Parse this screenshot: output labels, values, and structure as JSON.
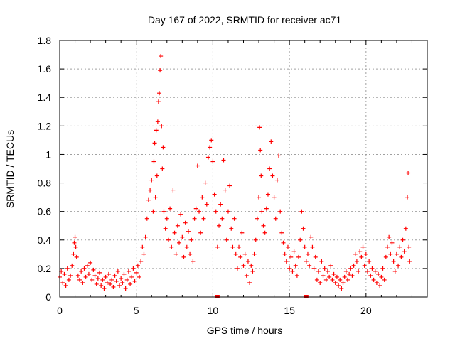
{
  "chart_data": {
    "type": "scatter",
    "title": "Day 167 of 2022, SRMTID for receiver ac71",
    "xlabel": "GPS time / hours",
    "ylabel": "SRMTID / TECUs",
    "xlim": [
      0,
      24
    ],
    "ylim": [
      0,
      1.8
    ],
    "xticks": [
      "0",
      "5",
      "10",
      "15",
      "20"
    ],
    "xtick_values": [
      0,
      5,
      10,
      15,
      20
    ],
    "yticks": [
      "0",
      "0.2",
      "0.4",
      "0.6",
      "0.8",
      "1",
      "1.2",
      "1.4",
      "1.6",
      "1.8"
    ],
    "ytick_values": [
      0,
      0.2,
      0.4,
      0.6,
      0.8,
      1.0,
      1.2,
      1.4,
      1.6,
      1.8
    ],
    "grid": true,
    "marker": "+",
    "color": "#ff0000",
    "series": [
      {
        "name": "SRMTID",
        "points": [
          [
            0.0,
            0.14
          ],
          [
            0.1,
            0.18
          ],
          [
            0.2,
            0.1
          ],
          [
            0.3,
            0.16
          ],
          [
            0.4,
            0.08
          ],
          [
            0.5,
            0.2
          ],
          [
            0.6,
            0.12
          ],
          [
            0.7,
            0.15
          ],
          [
            0.8,
            0.22
          ],
          [
            0.9,
            0.3
          ],
          [
            0.95,
            0.38
          ],
          [
            1.0,
            0.42
          ],
          [
            1.05,
            0.35
          ],
          [
            1.1,
            0.28
          ],
          [
            1.2,
            0.15
          ],
          [
            1.3,
            0.12
          ],
          [
            1.4,
            0.18
          ],
          [
            1.5,
            0.1
          ],
          [
            1.6,
            0.2
          ],
          [
            1.7,
            0.14
          ],
          [
            1.8,
            0.22
          ],
          [
            1.9,
            0.16
          ],
          [
            2.0,
            0.24
          ],
          [
            2.1,
            0.12
          ],
          [
            2.2,
            0.19
          ],
          [
            2.3,
            0.15
          ],
          [
            2.4,
            0.09
          ],
          [
            2.5,
            0.13
          ],
          [
            2.6,
            0.17
          ],
          [
            2.7,
            0.08
          ],
          [
            2.8,
            0.12
          ],
          [
            2.9,
            0.06
          ],
          [
            3.0,
            0.14
          ],
          [
            3.1,
            0.1
          ],
          [
            3.2,
            0.16
          ],
          [
            3.3,
            0.09
          ],
          [
            3.4,
            0.12
          ],
          [
            3.5,
            0.07
          ],
          [
            3.6,
            0.15
          ],
          [
            3.7,
            0.11
          ],
          [
            3.8,
            0.18
          ],
          [
            3.9,
            0.08
          ],
          [
            4.0,
            0.13
          ],
          [
            4.1,
            0.1
          ],
          [
            4.2,
            0.16
          ],
          [
            4.3,
            0.06
          ],
          [
            4.4,
            0.12
          ],
          [
            4.5,
            0.18
          ],
          [
            4.6,
            0.09
          ],
          [
            4.7,
            0.14
          ],
          [
            4.8,
            0.2
          ],
          [
            4.9,
            0.11
          ],
          [
            5.0,
            0.17
          ],
          [
            5.1,
            0.22
          ],
          [
            5.2,
            0.14
          ],
          [
            5.3,
            0.25
          ],
          [
            5.4,
            0.35
          ],
          [
            5.5,
            0.3
          ],
          [
            5.6,
            0.42
          ],
          [
            5.7,
            0.55
          ],
          [
            5.8,
            0.68
          ],
          [
            5.9,
            0.75
          ],
          [
            6.0,
            0.82
          ],
          [
            6.1,
            0.6
          ],
          [
            6.15,
            0.95
          ],
          [
            6.2,
            1.08
          ],
          [
            6.25,
            0.7
          ],
          [
            6.3,
            1.17
          ],
          [
            6.35,
            0.85
          ],
          [
            6.4,
            1.23
          ],
          [
            6.45,
            1.37
          ],
          [
            6.5,
            1.43
          ],
          [
            6.55,
            1.59
          ],
          [
            6.6,
            1.69
          ],
          [
            6.65,
            1.2
          ],
          [
            6.7,
            0.9
          ],
          [
            6.75,
            1.05
          ],
          [
            6.8,
            0.6
          ],
          [
            6.9,
            0.48
          ],
          [
            7.0,
            0.55
          ],
          [
            7.1,
            0.4
          ],
          [
            7.2,
            0.62
          ],
          [
            7.3,
            0.35
          ],
          [
            7.4,
            0.75
          ],
          [
            7.5,
            0.45
          ],
          [
            7.6,
            0.3
          ],
          [
            7.7,
            0.5
          ],
          [
            7.8,
            0.38
          ],
          [
            7.9,
            0.58
          ],
          [
            8.0,
            0.42
          ],
          [
            8.1,
            0.28
          ],
          [
            8.2,
            0.52
          ],
          [
            8.3,
            0.35
          ],
          [
            8.4,
            0.46
          ],
          [
            8.5,
            0.3
          ],
          [
            8.6,
            0.4
          ],
          [
            8.7,
            0.25
          ],
          [
            8.8,
            0.55
          ],
          [
            8.9,
            0.62
          ],
          [
            9.0,
            0.92
          ],
          [
            9.1,
            0.6
          ],
          [
            9.2,
            0.45
          ],
          [
            9.3,
            0.7
          ],
          [
            9.4,
            0.55
          ],
          [
            9.5,
            0.8
          ],
          [
            9.6,
            0.65
          ],
          [
            9.7,
            0.98
          ],
          [
            9.8,
            1.05
          ],
          [
            9.9,
            1.1
          ],
          [
            10.0,
            0.95
          ],
          [
            10.1,
            0.72
          ],
          [
            10.2,
            0.6
          ],
          [
            10.3,
            0.35
          ],
          [
            10.4,
            0.5
          ],
          [
            10.5,
            0.65
          ],
          [
            10.6,
            0.55
          ],
          [
            10.7,
            0.96
          ],
          [
            10.8,
            0.75
          ],
          [
            10.9,
            0.4
          ],
          [
            11.0,
            0.6
          ],
          [
            11.1,
            0.78
          ],
          [
            11.2,
            0.48
          ],
          [
            11.3,
            0.35
          ],
          [
            11.4,
            0.55
          ],
          [
            11.5,
            0.3
          ],
          [
            11.6,
            0.2
          ],
          [
            11.7,
            0.35
          ],
          [
            11.8,
            0.28
          ],
          [
            11.9,
            0.45
          ],
          [
            12.0,
            0.22
          ],
          [
            12.1,
            0.3
          ],
          [
            12.2,
            0.15
          ],
          [
            12.3,
            0.25
          ],
          [
            12.4,
            0.1
          ],
          [
            12.5,
            0.22
          ],
          [
            12.6,
            0.18
          ],
          [
            12.7,
            0.3
          ],
          [
            12.8,
            0.4
          ],
          [
            12.9,
            0.55
          ],
          [
            13.0,
            0.7
          ],
          [
            13.05,
            1.19
          ],
          [
            13.1,
            1.03
          ],
          [
            13.15,
            0.85
          ],
          [
            13.2,
            0.6
          ],
          [
            13.3,
            0.5
          ],
          [
            13.4,
            0.45
          ],
          [
            13.5,
            0.62
          ],
          [
            13.6,
            0.72
          ],
          [
            13.7,
            0.9
          ],
          [
            13.8,
            1.09
          ],
          [
            13.9,
            0.85
          ],
          [
            14.0,
            0.7
          ],
          [
            14.1,
            0.55
          ],
          [
            14.2,
            0.82
          ],
          [
            14.3,
            0.99
          ],
          [
            14.4,
            0.6
          ],
          [
            14.5,
            0.45
          ],
          [
            14.6,
            0.38
          ],
          [
            14.7,
            0.3
          ],
          [
            14.8,
            0.25
          ],
          [
            14.9,
            0.35
          ],
          [
            15.0,
            0.2
          ],
          [
            15.1,
            0.28
          ],
          [
            15.2,
            0.18
          ],
          [
            15.3,
            0.32
          ],
          [
            15.4,
            0.22
          ],
          [
            15.5,
            0.15
          ],
          [
            15.6,
            0.28
          ],
          [
            15.7,
            0.4
          ],
          [
            15.8,
            0.6
          ],
          [
            15.9,
            0.48
          ],
          [
            16.0,
            0.35
          ],
          [
            16.1,
            0.25
          ],
          [
            16.2,
            0.3
          ],
          [
            16.3,
            0.22
          ],
          [
            16.4,
            0.42
          ],
          [
            16.5,
            0.35
          ],
          [
            16.6,
            0.2
          ],
          [
            16.7,
            0.28
          ],
          [
            16.8,
            0.12
          ],
          [
            16.9,
            0.18
          ],
          [
            17.0,
            0.1
          ],
          [
            17.1,
            0.25
          ],
          [
            17.2,
            0.15
          ],
          [
            17.3,
            0.2
          ],
          [
            17.4,
            0.12
          ],
          [
            17.5,
            0.18
          ],
          [
            17.6,
            0.14
          ],
          [
            17.7,
            0.22
          ],
          [
            17.8,
            0.12
          ],
          [
            17.9,
            0.16
          ],
          [
            18.0,
            0.1
          ],
          [
            18.1,
            0.14
          ],
          [
            18.2,
            0.08
          ],
          [
            18.3,
            0.12
          ],
          [
            18.4,
            0.06
          ],
          [
            18.5,
            0.1
          ],
          [
            18.6,
            0.14
          ],
          [
            18.7,
            0.18
          ],
          [
            18.8,
            0.12
          ],
          [
            18.9,
            0.16
          ],
          [
            19.0,
            0.2
          ],
          [
            19.1,
            0.15
          ],
          [
            19.2,
            0.22
          ],
          [
            19.3,
            0.3
          ],
          [
            19.4,
            0.25
          ],
          [
            19.5,
            0.18
          ],
          [
            19.6,
            0.32
          ],
          [
            19.7,
            0.28
          ],
          [
            19.8,
            0.35
          ],
          [
            19.9,
            0.22
          ],
          [
            20.0,
            0.3
          ],
          [
            20.1,
            0.18
          ],
          [
            20.2,
            0.25
          ],
          [
            20.3,
            0.15
          ],
          [
            20.4,
            0.2
          ],
          [
            20.5,
            0.12
          ],
          [
            20.6,
            0.18
          ],
          [
            20.7,
            0.1
          ],
          [
            20.8,
            0.16
          ],
          [
            20.9,
            0.08
          ],
          [
            21.0,
            0.14
          ],
          [
            21.1,
            0.2
          ],
          [
            21.2,
            0.12
          ],
          [
            21.3,
            0.28
          ],
          [
            21.4,
            0.35
          ],
          [
            21.5,
            0.42
          ],
          [
            21.6,
            0.3
          ],
          [
            21.7,
            0.38
          ],
          [
            21.8,
            0.25
          ],
          [
            21.9,
            0.18
          ],
          [
            22.0,
            0.3
          ],
          [
            22.1,
            0.22
          ],
          [
            22.2,
            0.35
          ],
          [
            22.3,
            0.28
          ],
          [
            22.4,
            0.4
          ],
          [
            22.5,
            0.32
          ],
          [
            22.6,
            0.48
          ],
          [
            22.7,
            0.7
          ],
          [
            22.75,
            0.87
          ],
          [
            22.8,
            0.35
          ],
          [
            22.85,
            0.25
          ]
        ]
      }
    ],
    "outlier_markers": [
      [
        10.3,
        0.0
      ],
      [
        16.1,
        0.0
      ]
    ]
  }
}
